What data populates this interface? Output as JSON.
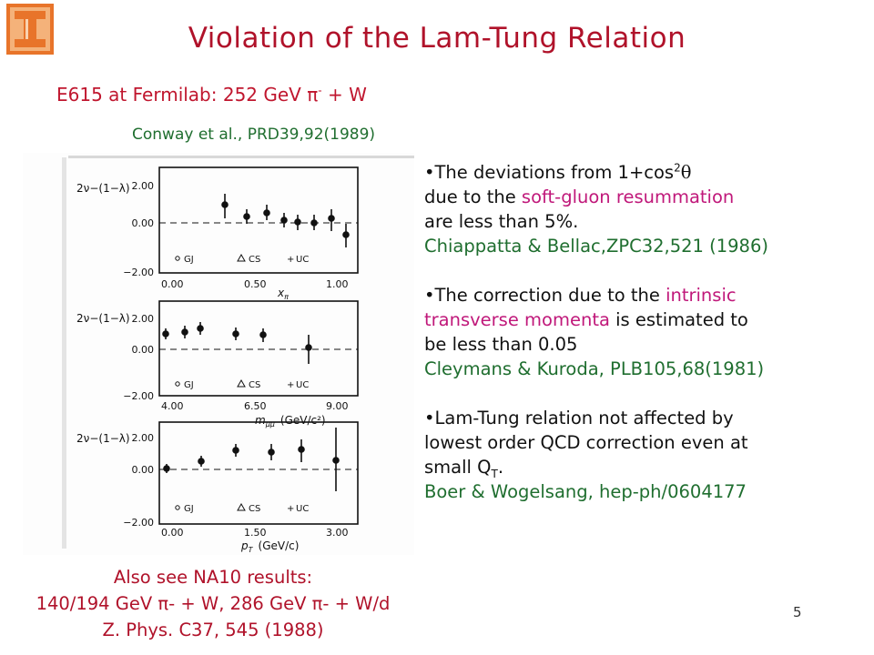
{
  "title": "Violation of the Lam-Tung Relation",
  "subtitle": {
    "text": "E615 at Fermilab: 252 GeV π",
    "sup": "-",
    "text2": " + W"
  },
  "reference": "Conway et al., PRD39,92(1989)",
  "figure": {
    "ylabel": "2ν−(1−λ)",
    "yticks": [
      "2.00",
      "0.00",
      "−2.00"
    ],
    "legend": [
      "GJ",
      "CS",
      "UC"
    ],
    "panels": [
      {
        "xticks": [
          "0.00",
          "0.50",
          "1.00"
        ],
        "xlabel": "x",
        "xlabel_sub": "π"
      },
      {
        "xticks": [
          "4.00",
          "6.50",
          "9.00"
        ],
        "xlabel": "m",
        "xlabel_sub": "μμ",
        "xunit": "(GeV/c²)"
      },
      {
        "xticks": [
          "0.00",
          "1.50",
          "3.00"
        ],
        "xlabel": "p",
        "xlabel_sub": "T",
        "xunit": "(GeV/c)"
      }
    ]
  },
  "notes": {
    "n1": {
      "t1": "•The deviations from 1+cos",
      "sup": "2",
      "theta": "θ",
      "t2": "due to the ",
      "hl": "soft-gluon resummation",
      "t3": "are less than 5%.",
      "cite": "Chiappatta & Bellac,ZPC32,521 (1986)"
    },
    "n2": {
      "t1": "•The correction due to the ",
      "hl1": "intrinsic",
      "hl2": "transverse momenta",
      "t2": " is estimated to",
      "t3": "be less than 0.05",
      "cite": "Cleymans & Kuroda, PLB105,68(1981)"
    },
    "n3": {
      "t1": "•Lam-Tung relation not affected by",
      "t2": "lowest order QCD correction even at",
      "t3": "small Q",
      "sub": "T",
      "t4": ".",
      "cite": "Boer & Wogelsang, hep-ph/0604177"
    }
  },
  "also": {
    "line1": "Also see NA10 results:",
    "line2": "140/194 GeV π- + W, 286 GeV π- + W/d",
    "line3": "Z. Phys. C37, 545 (1988)"
  },
  "page_number": "5",
  "colors": {
    "title": "#b0122a",
    "citation": "#1f6e2f",
    "highlight": "#c0187a",
    "logo": "#e8742a"
  }
}
